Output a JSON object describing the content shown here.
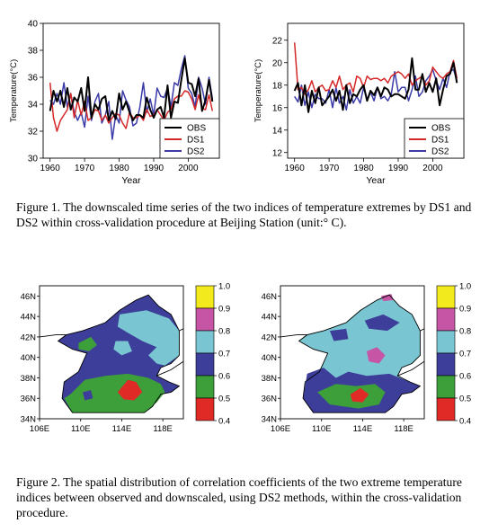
{
  "figure1": {
    "caption": "Figure 1. The downscaled time series of the two indices of temperature extremes by DS1 and DS2 within cross-validation procedure at Beijing Station (unit:° C).",
    "legend": [
      {
        "name": "OBS",
        "color": "#000000"
      },
      {
        "name": "DS1",
        "color": "#d62828"
      },
      {
        "name": "DS2",
        "color": "#3a3aa8"
      }
    ]
  },
  "figure2": {
    "caption": "Figure 2. The spatial distribution of correlation coefficients of the two extreme temperature indices between observed and downscaled, using DS2 methods, within the cross-validation procedure.",
    "lat_ticks": [
      "46N",
      "44N",
      "42N",
      "40N",
      "38N",
      "36N",
      "34N"
    ],
    "lon_ticks": [
      "106E",
      "110E",
      "114E",
      "118E"
    ],
    "colorbar": {
      "levels": [
        "1.0",
        "0.9",
        "0.8",
        "0.7",
        "0.6",
        "0.5",
        "0.4"
      ],
      "colors": [
        "#f2ea1c",
        "#c655a6",
        "#79c6d2",
        "#3d3e9a",
        "#3c9f3a",
        "#e02a26"
      ]
    }
  },
  "chart_data": [
    {
      "type": "line",
      "xlabel": "Year",
      "ylabel": "Temperature(°C)",
      "xlim": [
        1958,
        2009
      ],
      "ylim": [
        30,
        40
      ],
      "xticks": [
        1960,
        1970,
        1980,
        1990,
        2000
      ],
      "yticks": [
        30,
        32,
        34,
        36,
        38,
        40
      ],
      "grid": false,
      "legend_position": "bottom-right",
      "x": [
        1960,
        1961,
        1962,
        1963,
        1964,
        1965,
        1966,
        1967,
        1968,
        1969,
        1970,
        1971,
        1972,
        1973,
        1974,
        1975,
        1976,
        1977,
        1978,
        1979,
        1980,
        1981,
        1982,
        1983,
        1984,
        1985,
        1986,
        1987,
        1988,
        1989,
        1990,
        1991,
        1992,
        1993,
        1994,
        1995,
        1996,
        1997,
        1998,
        1999,
        2000,
        2001,
        2002,
        2003,
        2004,
        2005,
        2006,
        2007
      ],
      "series": [
        {
          "name": "OBS",
          "color": "#000000",
          "values": [
            33.5,
            35.0,
            34.2,
            35.0,
            33.8,
            35.2,
            33.6,
            34.5,
            34.2,
            35.2,
            33.5,
            36.0,
            33.0,
            34.0,
            33.6,
            34.4,
            34.6,
            32.8,
            33.5,
            32.9,
            34.8,
            33.6,
            34.2,
            33.4,
            32.8,
            33.2,
            33.2,
            33.0,
            34.5,
            33.6,
            33.0,
            33.6,
            33.8,
            33.0,
            35.4,
            33.0,
            34.2,
            34.1,
            35.8,
            37.4,
            35.6,
            35.5,
            34.6,
            35.9,
            33.5,
            34.3,
            35.8,
            34.2
          ]
        },
        {
          "name": "DS1",
          "color": "#d62828",
          "values": [
            35.6,
            33.0,
            32.0,
            32.8,
            33.2,
            33.6,
            34.8,
            33.0,
            34.3,
            33.2,
            34.2,
            32.8,
            33.0,
            33.6,
            33.5,
            32.8,
            33.2,
            32.6,
            33.0,
            33.3,
            33.2,
            32.6,
            32.2,
            33.4,
            33.0,
            33.0,
            33.2,
            32.8,
            33.6,
            33.1,
            33.2,
            33.6,
            33.2,
            32.8,
            33.4,
            33.6,
            34.4,
            34.6,
            34.6,
            35.0,
            34.9,
            34.4,
            33.6,
            34.7,
            33.7,
            33.6,
            34.7,
            33.5
          ]
        },
        {
          "name": "DS2",
          "color": "#3a3aa8",
          "values": [
            34.3,
            34.0,
            34.8,
            34.0,
            35.6,
            33.8,
            34.8,
            33.4,
            32.8,
            33.4,
            32.3,
            34.6,
            32.8,
            34.2,
            34.8,
            32.6,
            33.2,
            34.2,
            31.4,
            33.2,
            32.6,
            35.0,
            34.3,
            33.8,
            32.4,
            32.6,
            33.8,
            35.6,
            33.4,
            34.4,
            33.2,
            35.2,
            34.6,
            34.5,
            35.2,
            33.8,
            35.6,
            35.4,
            36.6,
            37.6,
            35.2,
            34.8,
            33.8,
            36.0,
            35.2,
            34.0,
            36.0,
            34.4
          ]
        }
      ]
    },
    {
      "type": "line",
      "xlabel": "Year",
      "ylabel": "Temperature(°C)",
      "xlim": [
        1958,
        2009
      ],
      "ylim": [
        11.5,
        23.5
      ],
      "xticks": [
        1960,
        1970,
        1980,
        1990,
        2000
      ],
      "yticks": [
        12,
        14,
        16,
        18,
        20,
        22
      ],
      "grid": false,
      "legend_position": "bottom-right",
      "x": [
        1960,
        1961,
        1962,
        1963,
        1964,
        1965,
        1966,
        1967,
        1968,
        1969,
        1970,
        1971,
        1972,
        1973,
        1974,
        1975,
        1976,
        1977,
        1978,
        1979,
        1980,
        1981,
        1982,
        1983,
        1984,
        1985,
        1986,
        1987,
        1988,
        1989,
        1990,
        1991,
        1992,
        1993,
        1994,
        1995,
        1996,
        1997,
        1998,
        1999,
        2000,
        2001,
        2002,
        2003,
        2004,
        2005,
        2006,
        2007
      ],
      "series": [
        {
          "name": "OBS",
          "color": "#000000",
          "values": [
            17.5,
            18.2,
            16.2,
            18.0,
            15.6,
            17.5,
            16.4,
            17.8,
            16.2,
            16.6,
            17.0,
            17.6,
            16.6,
            17.5,
            15.8,
            18.0,
            16.4,
            17.2,
            17.0,
            17.6,
            18.0,
            16.6,
            17.5,
            17.1,
            17.8,
            17.0,
            17.8,
            17.6,
            17.0,
            17.2,
            17.2,
            17.0,
            16.8,
            17.6,
            20.4,
            17.6,
            17.6,
            19.0,
            17.4,
            18.2,
            17.4,
            18.6,
            16.2,
            17.6,
            18.8,
            19.0,
            20.0,
            18.2
          ]
        },
        {
          "name": "DS1",
          "color": "#d62828",
          "values": [
            21.8,
            17.6,
            17.8,
            17.2,
            17.6,
            18.4,
            17.4,
            17.8,
            18.0,
            17.5,
            17.6,
            18.4,
            17.8,
            18.8,
            17.6,
            18.0,
            18.2,
            17.4,
            18.8,
            18.6,
            17.8,
            18.8,
            18.5,
            18.6,
            18.6,
            18.4,
            18.6,
            18.2,
            18.8,
            19.0,
            19.2,
            19.0,
            18.6,
            19.0,
            18.0,
            18.4,
            18.6,
            18.8,
            18.0,
            18.4,
            19.6,
            19.2,
            18.8,
            18.6,
            19.0,
            19.2,
            20.2,
            18.6
          ]
        },
        {
          "name": "DS2",
          "color": "#3a3aa8",
          "values": [
            17.0,
            16.5,
            18.0,
            16.2,
            17.4,
            16.0,
            17.2,
            16.8,
            16.8,
            16.4,
            17.6,
            16.0,
            17.8,
            16.4,
            17.0,
            15.8,
            17.6,
            16.4,
            17.0,
            16.4,
            17.8,
            16.6,
            17.4,
            16.6,
            17.8,
            16.8,
            17.0,
            16.6,
            17.2,
            19.2,
            17.4,
            17.8,
            17.8,
            16.6,
            17.6,
            18.8,
            17.0,
            17.4,
            18.4,
            18.8,
            19.4,
            18.4,
            17.6,
            18.6,
            17.8,
            19.2,
            19.4,
            18.4
          ]
        }
      ]
    }
  ]
}
